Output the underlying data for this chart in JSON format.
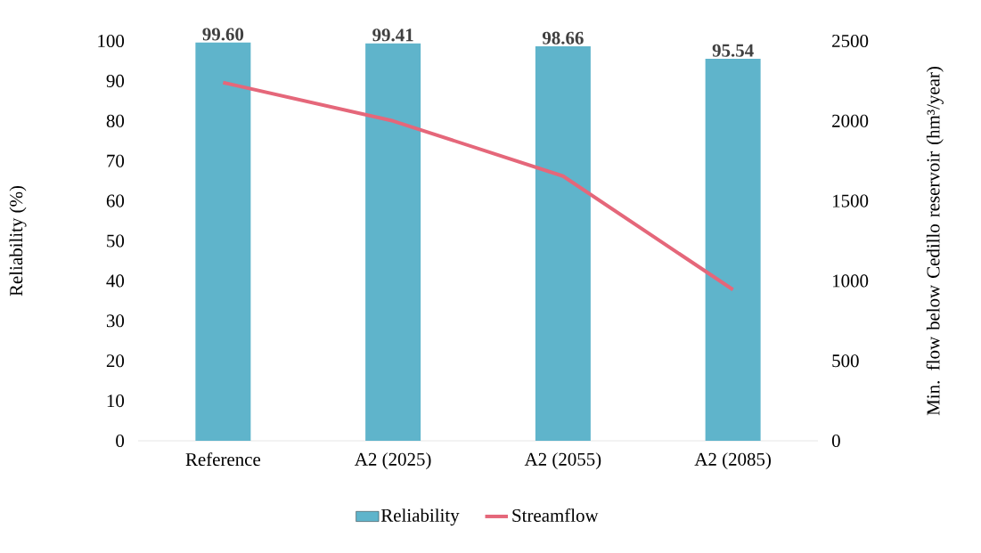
{
  "chart_data": {
    "type": "bar",
    "categories": [
      "Reference",
      "A2 (2025)",
      "A2 (2055)",
      "A2 (2085)"
    ],
    "ylabel": "Reliability  (%)",
    "y2label": "Min. flow below Cedillo reservoir (hm³/year)",
    "series": [
      {
        "name": "Reliability",
        "color": "#5fb4cb",
        "values": [
          99.6,
          99.41,
          98.66,
          95.54
        ],
        "value_labels": [
          "99.60",
          "99.41",
          "98.66",
          "95.54"
        ]
      },
      {
        "name": "Streamflow",
        "type": "line",
        "axis": "y2",
        "color": "#e5677a",
        "values": [
          2240,
          2000,
          1655,
          945
        ]
      }
    ],
    "ylim": [
      0,
      100
    ],
    "yticks": [
      0,
      10,
      20,
      30,
      40,
      50,
      60,
      70,
      80,
      90,
      100
    ],
    "y2lim": [
      0,
      2500
    ],
    "y2ticks": [
      0,
      500,
      1000,
      1500,
      2000,
      2500
    ],
    "legend": "bottom",
    "grid": false
  }
}
